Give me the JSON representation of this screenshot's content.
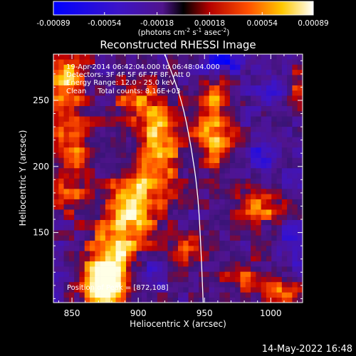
{
  "chart_data": {
    "type": "heatmap",
    "title": "Reconstructed RHESSI Image",
    "xlabel": "Heliocentric X (arcsec)",
    "ylabel": "Heliocentric Y (arcsec)",
    "xlim": [
      836,
      1024
    ],
    "ylim": [
      97,
      285
    ],
    "x_ticks": [
      850,
      900,
      950,
      1000
    ],
    "y_ticks": [
      150,
      200,
      250
    ],
    "colorbar": {
      "range": [
        -0.00089,
        0.00089
      ],
      "tick_values": [
        -0.00089,
        -0.00054,
        -0.00018,
        0.00018,
        0.00054,
        0.00089
      ],
      "tick_labels": [
        "-0.00089",
        "-0.00054",
        "-0.00018",
        "0.00018",
        "0.00054",
        "0.00089"
      ],
      "unit_main": "(photons cm",
      "unit_sup1": "-2",
      "unit_mid1": " s",
      "unit_sup2": "-1",
      "unit_mid2": " asec",
      "unit_sup3": "-2",
      "unit_end": ")"
    },
    "info_lines": [
      "19-Apr-2014 06:42:04.000 to 06:48:04.000",
      "Detectors: 3F 4F 5F 6F 7F 8F, Att 0",
      "Energy Range: 12.0 - 25.0 keV",
      "Clean     Total counts: 8.16E+03"
    ],
    "peak_label": "Position of Peak = [872,108]",
    "peak_position": [
      872,
      108
    ],
    "limb_curve": [
      [
        920,
        285
      ],
      [
        933,
        250
      ],
      [
        940,
        215
      ],
      [
        945,
        180
      ],
      [
        947,
        145
      ],
      [
        949,
        97
      ]
    ],
    "emission_sources": [
      {
        "x": 845,
        "y": 265,
        "sx": 11,
        "sy": 16,
        "v": 0.0008
      },
      {
        "x": 850,
        "y": 218,
        "sx": 10,
        "sy": 14,
        "v": 0.00062
      },
      {
        "x": 848,
        "y": 182,
        "sx": 9,
        "sy": 11,
        "v": 0.0005
      },
      {
        "x": 880,
        "y": 130,
        "sx": 14,
        "sy": 22,
        "v": 0.00085
      },
      {
        "x": 872,
        "y": 108,
        "sx": 10,
        "sy": 12,
        "v": 0.00089
      },
      {
        "x": 895,
        "y": 170,
        "sx": 13,
        "sy": 18,
        "v": 0.00078
      },
      {
        "x": 915,
        "y": 215,
        "sx": 12,
        "sy": 28,
        "v": 0.00082
      },
      {
        "x": 895,
        "y": 250,
        "sx": 10,
        "sy": 10,
        "v": 0.0005
      },
      {
        "x": 958,
        "y": 222,
        "sx": 11,
        "sy": 16,
        "v": 0.00072
      },
      {
        "x": 958,
        "y": 255,
        "sx": 9,
        "sy": 9,
        "v": 0.00048
      },
      {
        "x": 985,
        "y": 172,
        "sx": 9,
        "sy": 9,
        "v": 0.00055
      },
      {
        "x": 1003,
        "y": 168,
        "sx": 8,
        "sy": 8,
        "v": 0.00048
      },
      {
        "x": 940,
        "y": 135,
        "sx": 10,
        "sy": 9,
        "v": 0.0005
      },
      {
        "x": 980,
        "y": 118,
        "sx": 11,
        "sy": 9,
        "v": 0.00042
      },
      {
        "x": 1010,
        "y": 106,
        "sx": 10,
        "sy": 8,
        "v": 0.00062
      },
      {
        "x": 1018,
        "y": 260,
        "sx": 7,
        "sy": 9,
        "v": 0.0004
      },
      {
        "x": 965,
        "y": 280,
        "sx": 12,
        "sy": 6,
        "v": -0.0006
      },
      {
        "x": 1002,
        "y": 255,
        "sx": 9,
        "sy": 8,
        "v": -0.00045
      },
      {
        "x": 905,
        "y": 120,
        "sx": 10,
        "sy": 8,
        "v": -0.00038
      },
      {
        "x": 995,
        "y": 210,
        "sx": 10,
        "sy": 12,
        "v": -0.0003
      },
      {
        "x": 1015,
        "y": 140,
        "sx": 8,
        "sy": 12,
        "v": -0.00035
      }
    ],
    "background_level": -0.00012
  },
  "footer": {
    "date": "14-May-2022 16:48"
  }
}
